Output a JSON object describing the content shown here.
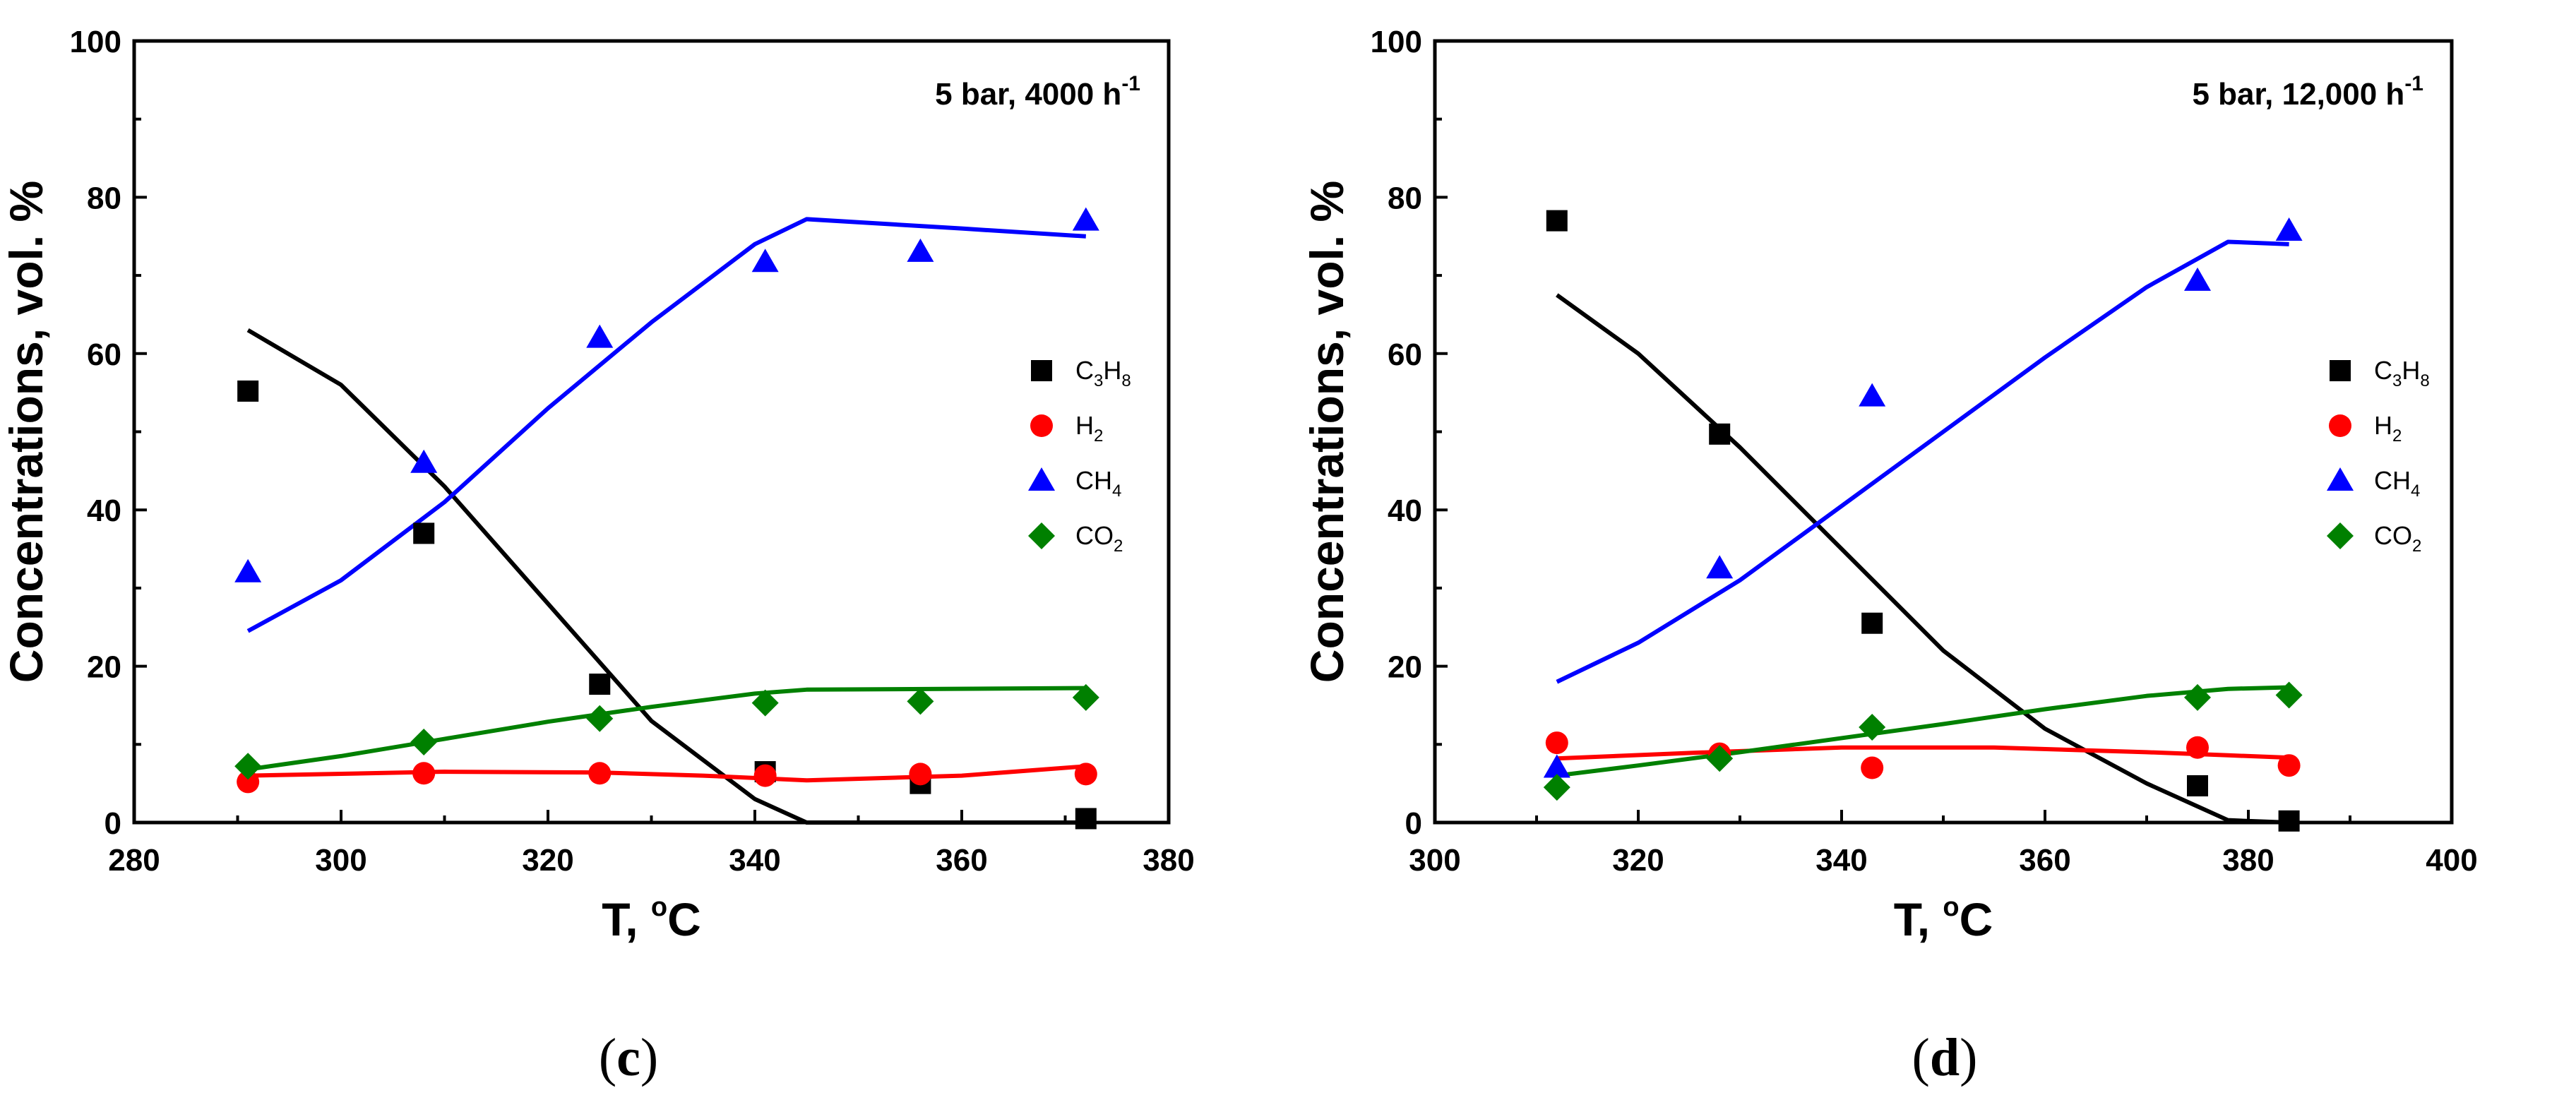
{
  "figure": {
    "panels": [
      {
        "label_open": "(",
        "label_letter": "c",
        "label_close": ")"
      },
      {
        "label_open": "(",
        "label_letter": "d",
        "label_close": ")"
      }
    ]
  },
  "chart_data": [
    {
      "type": "scatter",
      "panel": "c",
      "annotation": "5 bar, 4000 h",
      "annotation_sup": "-1",
      "xlabel": "T, ",
      "xlabel_unit_sup": "o",
      "xlabel_unit": "C",
      "ylabel": "Concentrations, vol. %",
      "xlim": [
        280,
        380
      ],
      "ylim": [
        0,
        100
      ],
      "xticks": [
        280,
        300,
        320,
        340,
        360,
        380
      ],
      "yticks": [
        0,
        20,
        40,
        60,
        80,
        100
      ],
      "legend_position": "right",
      "series": [
        {
          "name": "C3H8",
          "main": "C",
          "sub1": "3",
          "mid": "H",
          "sub2": "8",
          "marker": "square",
          "color": "#000000",
          "points": [
            [
              291,
              55.2
            ],
            [
              308,
              37.0
            ],
            [
              325,
              17.7
            ],
            [
              341,
              6.5
            ],
            [
              356,
              5.0
            ],
            [
              372,
              0.5
            ]
          ],
          "fit": [
            [
              291,
              63
            ],
            [
              300,
              56
            ],
            [
              310,
              43
            ],
            [
              320,
              28
            ],
            [
              330,
              13
            ],
            [
              340,
              3
            ],
            [
              345,
              0
            ],
            [
              372,
              0
            ]
          ]
        },
        {
          "name": "H2",
          "main": "H",
          "sub1": "2",
          "mid": "",
          "sub2": "",
          "marker": "circle",
          "color": "#ff0000",
          "points": [
            [
              291,
              5.2
            ],
            [
              308,
              6.3
            ],
            [
              325,
              6.3
            ],
            [
              341,
              6.0
            ],
            [
              356,
              6.2
            ],
            [
              372,
              6.2
            ]
          ],
          "fit": [
            [
              291,
              6.0
            ],
            [
              310,
              6.5
            ],
            [
              325,
              6.4
            ],
            [
              335,
              6.0
            ],
            [
              345,
              5.4
            ],
            [
              360,
              6.0
            ],
            [
              372,
              7.2
            ]
          ]
        },
        {
          "name": "CH4",
          "main": "CH",
          "sub1": "4",
          "mid": "",
          "sub2": "",
          "marker": "triangle",
          "color": "#0000ff",
          "points": [
            [
              291,
              32.0
            ],
            [
              308,
              46.0
            ],
            [
              325,
              62.0
            ],
            [
              341,
              71.7
            ],
            [
              356,
              73.0
            ],
            [
              372,
              77.0
            ]
          ],
          "fit": [
            [
              291,
              24.5
            ],
            [
              300,
              31
            ],
            [
              310,
              41
            ],
            [
              320,
              53
            ],
            [
              330,
              64
            ],
            [
              340,
              74
            ],
            [
              345,
              77.2
            ],
            [
              360,
              76
            ],
            [
              372,
              75
            ]
          ]
        },
        {
          "name": "CO2",
          "main": "CO",
          "sub1": "2",
          "mid": "",
          "sub2": "",
          "marker": "diamond",
          "color": "#008000",
          "points": [
            [
              291,
              7.2
            ],
            [
              308,
              10.3
            ],
            [
              325,
              13.3
            ],
            [
              341,
              15.3
            ],
            [
              356,
              15.5
            ],
            [
              372,
              16.0
            ]
          ],
          "fit": [
            [
              291,
              6.8
            ],
            [
              300,
              8.5
            ],
            [
              310,
              10.7
            ],
            [
              320,
              12.9
            ],
            [
              330,
              14.8
            ],
            [
              340,
              16.5
            ],
            [
              345,
              17.0
            ],
            [
              372,
              17.2
            ]
          ]
        }
      ]
    },
    {
      "type": "scatter",
      "panel": "d",
      "annotation": "5 bar, 12,000 h",
      "annotation_sup": "-1",
      "xlabel": "T, ",
      "xlabel_unit_sup": "o",
      "xlabel_unit": "C",
      "ylabel": "Concentrations, vol. %",
      "xlim": [
        300,
        400
      ],
      "ylim": [
        0,
        100
      ],
      "xticks": [
        300,
        320,
        340,
        360,
        380,
        400
      ],
      "yticks": [
        0,
        20,
        40,
        60,
        80,
        100
      ],
      "legend_position": "right",
      "series": [
        {
          "name": "C3H8",
          "main": "C",
          "sub1": "3",
          "mid": "H",
          "sub2": "8",
          "marker": "square",
          "color": "#000000",
          "points": [
            [
              312,
              77.0
            ],
            [
              328,
              49.7
            ],
            [
              343,
              25.5
            ],
            [
              375,
              4.7
            ],
            [
              384,
              0.2
            ]
          ],
          "fit": [
            [
              312,
              67.5
            ],
            [
              320,
              60
            ],
            [
              330,
              48
            ],
            [
              340,
              35
            ],
            [
              350,
              22
            ],
            [
              360,
              12
            ],
            [
              370,
              5
            ],
            [
              378,
              0.3
            ],
            [
              384,
              0
            ]
          ]
        },
        {
          "name": "H2",
          "main": "H",
          "sub1": "2",
          "mid": "",
          "sub2": "",
          "marker": "circle",
          "color": "#ff0000",
          "points": [
            [
              312,
              10.2
            ],
            [
              328,
              8.8
            ],
            [
              343,
              7.0
            ],
            [
              375,
              9.6
            ],
            [
              384,
              7.3
            ]
          ],
          "fit": [
            [
              312,
              8.2
            ],
            [
              325,
              8.9
            ],
            [
              340,
              9.6
            ],
            [
              355,
              9.6
            ],
            [
              370,
              9.0
            ],
            [
              378,
              8.6
            ],
            [
              384,
              8.3
            ]
          ]
        },
        {
          "name": "CH4",
          "main": "CH",
          "sub1": "4",
          "mid": "",
          "sub2": "",
          "marker": "triangle",
          "color": "#0000ff",
          "points": [
            [
              312,
              7.0
            ],
            [
              328,
              32.5
            ],
            [
              343,
              54.5
            ],
            [
              375,
              69.3
            ],
            [
              384,
              75.7
            ]
          ],
          "fit": [
            [
              312,
              18
            ],
            [
              320,
              23
            ],
            [
              330,
              31
            ],
            [
              340,
              40.5
            ],
            [
              350,
              50
            ],
            [
              360,
              59.5
            ],
            [
              370,
              68.5
            ],
            [
              378,
              74.3
            ],
            [
              384,
              74
            ]
          ]
        },
        {
          "name": "CO2",
          "main": "CO",
          "sub1": "2",
          "mid": "",
          "sub2": "",
          "marker": "diamond",
          "color": "#008000",
          "points": [
            [
              312,
              4.5
            ],
            [
              328,
              8.2
            ],
            [
              343,
              12.2
            ],
            [
              375,
              16.0
            ],
            [
              384,
              16.3
            ]
          ],
          "fit": [
            [
              312,
              6.0
            ],
            [
              320,
              7.3
            ],
            [
              330,
              9.0
            ],
            [
              340,
              10.8
            ],
            [
              350,
              12.6
            ],
            [
              360,
              14.5
            ],
            [
              370,
              16.2
            ],
            [
              378,
              17.1
            ],
            [
              384,
              17.3
            ]
          ]
        }
      ]
    }
  ]
}
